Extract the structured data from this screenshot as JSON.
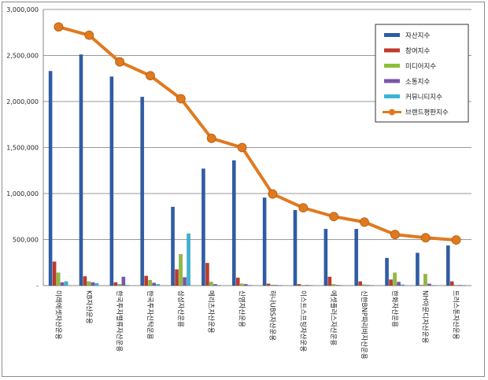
{
  "chart_data": {
    "type": "bar",
    "categories": [
      "미래에셋자산운용",
      "KB자산운용",
      "한국투자밸류자산운용",
      "한국투자신탁운용",
      "삼성자산운용",
      "메리츠자산운용",
      "신영자산운용",
      "하나UBS자산운용",
      "이스트스프링자산운용",
      "에셋플러스자산운용",
      "신한BNP파리바자산운용",
      "한화자산운용",
      "NH아문디자산운용",
      "트러스톤자산운용"
    ],
    "series": [
      {
        "name": "자산지수",
        "color": "#2e5ca8",
        "values": [
          2330000,
          2510000,
          2270000,
          2050000,
          855000,
          1270000,
          1360000,
          955000,
          820000,
          615000,
          615000,
          300000,
          355000,
          435000
        ]
      },
      {
        "name": "참여지수",
        "color": "#c0392b",
        "values": [
          260000,
          100000,
          35000,
          105000,
          175000,
          245000,
          85000,
          20000,
          15000,
          95000,
          45000,
          65000,
          5000,
          45000
        ]
      },
      {
        "name": "미디어지수",
        "color": "#8fbc3b",
        "values": [
          140000,
          45000,
          15000,
          60000,
          340000,
          40000,
          20000,
          8000,
          5000,
          15000,
          10000,
          140000,
          125000,
          5000
        ]
      },
      {
        "name": "소통지수",
        "color": "#7a57a8",
        "values": [
          35000,
          35000,
          95000,
          30000,
          90000,
          15000,
          15000,
          5000,
          5000,
          5000,
          5000,
          40000,
          20000,
          5000
        ]
      },
      {
        "name": "커뮤니티지수",
        "color": "#3ab3d6",
        "values": [
          45000,
          25000,
          5000,
          15000,
          565000,
          5000,
          5000,
          3000,
          3000,
          3000,
          3000,
          10000,
          3000,
          3000
        ]
      }
    ],
    "line_series": {
      "name": "브랜드평판지수",
      "color": "#e07a1f",
      "values": [
        2810000,
        2720000,
        2430000,
        2280000,
        2030000,
        1600000,
        1500000,
        995000,
        845000,
        750000,
        690000,
        555000,
        520000,
        495000
      ]
    },
    "y_ticks": [
      "-",
      "500,000",
      "1,000,000",
      "1,500,000",
      "2,000,000",
      "2,500,000",
      "3,000,000"
    ],
    "ylim": [
      0,
      3000000
    ],
    "grid": true,
    "legend": "top-right",
    "title": "",
    "xlabel": "",
    "ylabel": ""
  }
}
